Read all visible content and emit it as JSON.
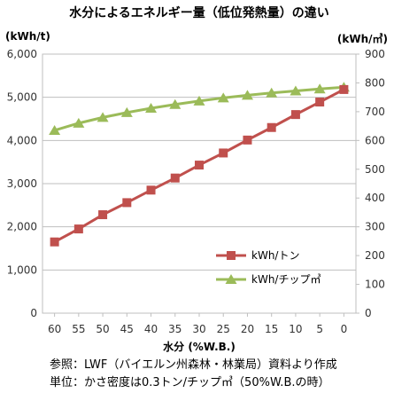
{
  "chart_data": {
    "type": "line",
    "title": "水分によるエネルギー量（低位発熱量）の違い",
    "ylabel_left": "(kWh/t)",
    "ylabel_right": "(kWh/㎥)",
    "xlabel": "水分 (%W.B.)",
    "x": [
      60,
      55,
      50,
      45,
      40,
      35,
      30,
      25,
      20,
      15,
      10,
      5,
      0
    ],
    "x_tick_labels": [
      "60",
      "55",
      "50",
      "45",
      "40",
      "35",
      "30",
      "25",
      "20",
      "15",
      "10",
      "5",
      "0"
    ],
    "ylim_left": [
      0,
      6000
    ],
    "ylim_right": [
      0,
      900
    ],
    "y_left_ticks": [
      "0",
      "1,000",
      "2,000",
      "3,000",
      "4,000",
      "5,000",
      "6,000"
    ],
    "y_right_ticks": [
      "0",
      "100",
      "200",
      "300",
      "400",
      "500",
      "600",
      "700",
      "800",
      "900"
    ],
    "grid": "horizontal",
    "legend_position": "right",
    "series": [
      {
        "name": "kWh/トン",
        "axis": "left",
        "marker": "square",
        "color": "#C0504D",
        "values": [
          1650,
          1950,
          2280,
          2560,
          2850,
          3130,
          3430,
          3710,
          4010,
          4300,
          4600,
          4890,
          5180
        ]
      },
      {
        "name": "kWh/チップ㎥",
        "axis": "right",
        "marker": "triangle",
        "color": "#9BBB59",
        "values": [
          635,
          660,
          680,
          697,
          712,
          725,
          737,
          748,
          757,
          765,
          772,
          779,
          785
        ]
      }
    ]
  },
  "notes": {
    "source": "参照：LWF（バイエルン州森林・林業局）資料より作成",
    "unit_note": "単位：かさ密度は0.3トン/チップ㎥（50%W.B.の時）"
  }
}
